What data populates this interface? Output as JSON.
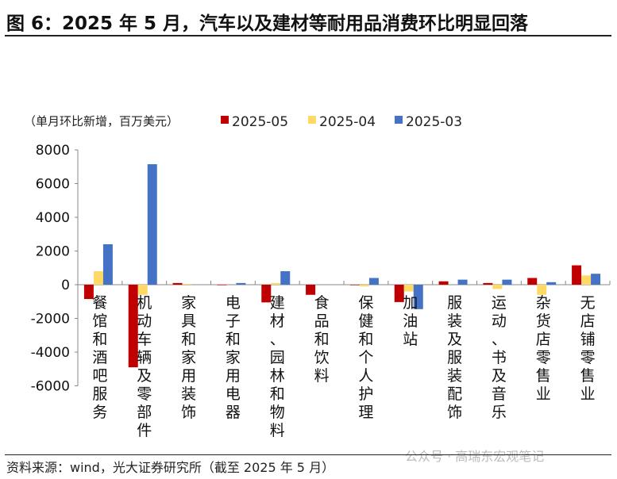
{
  "title": "图 6：2025 年 5 月，汽车以及建材等耐用品消费环比明显回落",
  "source": "资料来源：wind，光大证券研究所（截至 2025 年 5 月）",
  "watermark": "公众号 · 高瑞东宏观笔记",
  "chart_data": {
    "type": "bar",
    "ylabel": "（单月环比新增，百万美元）",
    "ylim": [
      -6000,
      8000
    ],
    "yticks": [
      8000,
      6000,
      4000,
      2000,
      0,
      -2000,
      -4000,
      -6000
    ],
    "grid": false,
    "legend": "top",
    "categories": [
      "餐馆和酒吧服务",
      "机动车辆及零部件",
      "家具和家用装饰",
      "电子和家用电器",
      "建材、园林和物料",
      "食品和饮料",
      "保健和个人护理",
      "加油站",
      "服装及服装配饰",
      "运动、书及音乐",
      "杂货店零售业",
      "无店铺零售业"
    ],
    "series": [
      {
        "name": "2025-05",
        "color": "#c00000",
        "values": [
          -850,
          -4900,
          100,
          -30,
          -1050,
          -600,
          -30,
          -1030,
          200,
          100,
          400,
          1150
        ]
      },
      {
        "name": "2025-04",
        "color": "#ffd966",
        "values": [
          800,
          -600,
          50,
          0,
          100,
          0,
          -100,
          -400,
          0,
          -250,
          -600,
          550
        ]
      },
      {
        "name": "2025-03",
        "color": "#4472c4",
        "values": [
          2400,
          7150,
          0,
          100,
          800,
          0,
          400,
          -1450,
          300,
          300,
          150,
          650
        ]
      }
    ]
  }
}
